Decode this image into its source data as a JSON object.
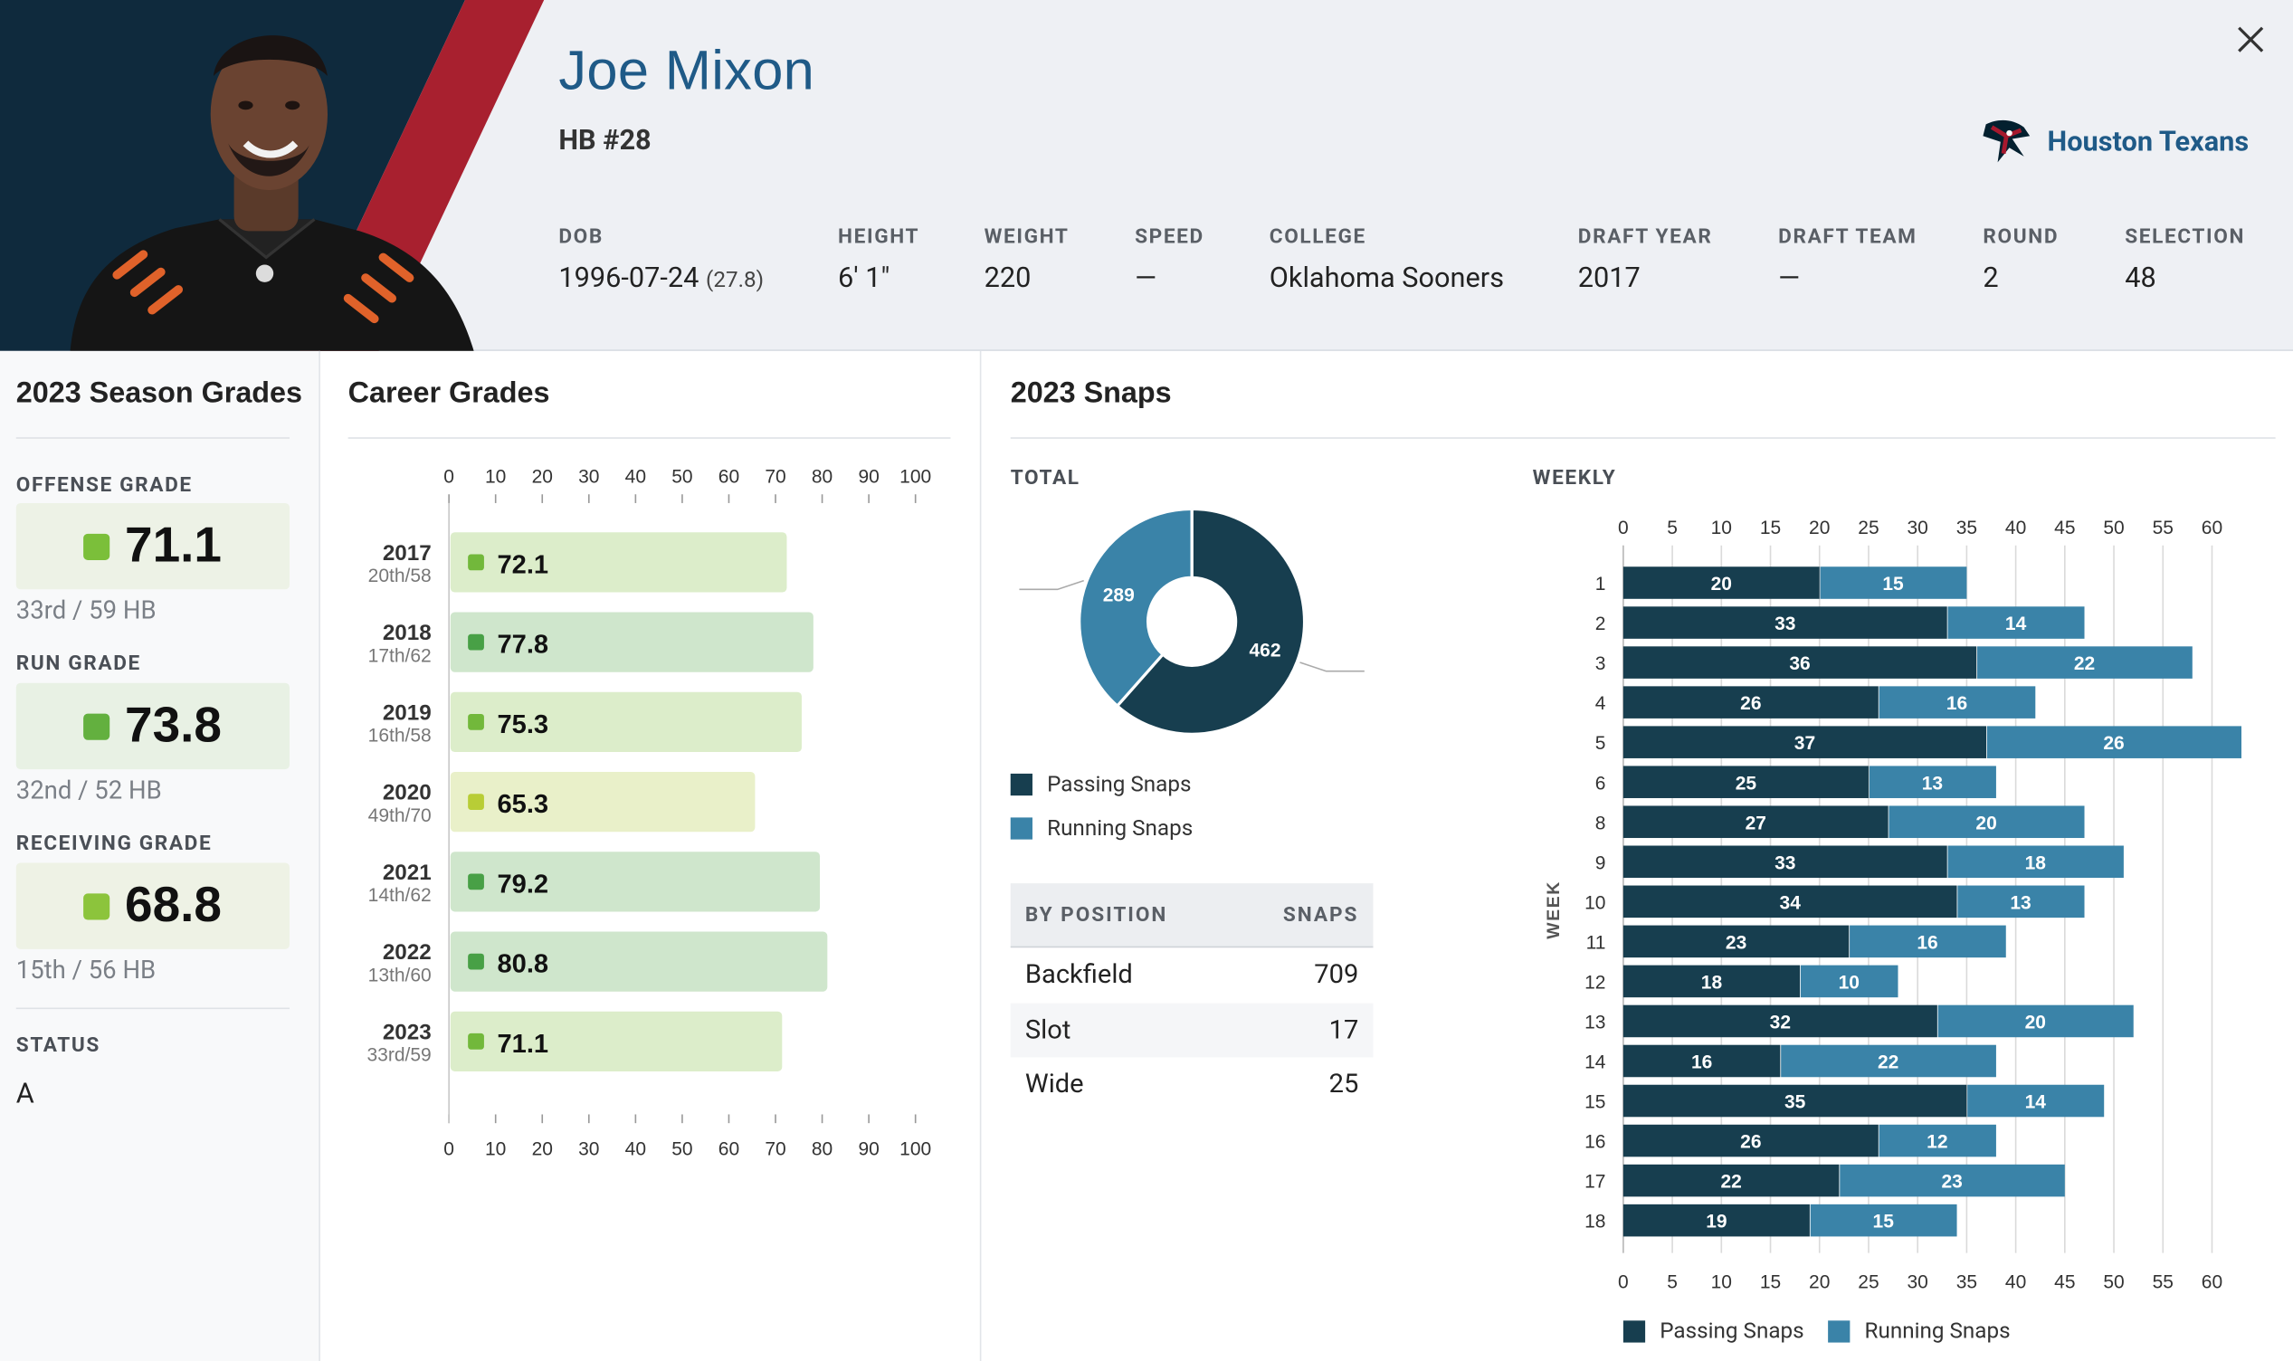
{
  "player": {
    "name": "Joe Mixon",
    "position_number": "HB #28",
    "team": "Houston Texans",
    "attributes": [
      {
        "label": "DOB",
        "value": "1996-07-24",
        "extra": "(27.8)"
      },
      {
        "label": "HEIGHT",
        "value": "6' 1\""
      },
      {
        "label": "WEIGHT",
        "value": "220"
      },
      {
        "label": "SPEED",
        "value": "—"
      },
      {
        "label": "COLLEGE",
        "value": "Oklahoma Sooners"
      },
      {
        "label": "DRAFT YEAR",
        "value": "2017"
      },
      {
        "label": "DRAFT TEAM",
        "value": "—"
      },
      {
        "label": "ROUND",
        "value": "2"
      },
      {
        "label": "SELECTION",
        "value": "48"
      }
    ]
  },
  "season_grades": {
    "title": "2023 Season Grades",
    "offense": {
      "label": "OFFENSE GRADE",
      "value": "71.1",
      "rank": "33rd / 59 HB"
    },
    "run": {
      "label": "RUN GRADE",
      "value": "73.8",
      "rank": "32nd / 52 HB"
    },
    "receiving": {
      "label": "RECEIVING GRADE",
      "value": "68.8",
      "rank": "15th / 56 HB"
    },
    "status_label": "STATUS",
    "status_value": "A"
  },
  "career": {
    "title": "Career Grades"
  },
  "snaps": {
    "title": "2023 Snaps",
    "total_label": "TOTAL",
    "weekly_label": "WEEKLY",
    "week_axis_label": "WEEK",
    "legend_passing": "Passing Snaps",
    "legend_running": "Running Snaps",
    "table": {
      "col1": "BY POSITION",
      "col2": "SNAPS",
      "rows": [
        {
          "position": "Backfield",
          "snaps": "709"
        },
        {
          "position": "Slot",
          "snaps": "17"
        },
        {
          "position": "Wide",
          "snaps": "25"
        }
      ]
    }
  },
  "colors": {
    "passing": "#173e4f",
    "running": "#3a83a8",
    "accent_blue": "#1f5a87"
  },
  "chart_data": [
    {
      "type": "bar",
      "orientation": "horizontal",
      "title": "Career Grades",
      "categories": [
        "2017",
        "2018",
        "2019",
        "2020",
        "2021",
        "2022",
        "2023"
      ],
      "subtitles": [
        "20th/58",
        "17th/62",
        "16th/58",
        "49th/70",
        "14th/62",
        "13th/60",
        "33rd/59"
      ],
      "values": [
        72.1,
        77.8,
        75.3,
        65.3,
        79.2,
        80.8,
        71.1
      ],
      "xlim": [
        0,
        100
      ],
      "xticks": [
        0,
        10,
        20,
        30,
        40,
        50,
        60,
        70,
        80,
        90,
        100
      ]
    },
    {
      "type": "pie",
      "title": "TOTAL",
      "labels": [
        "Passing Snaps",
        "Running Snaps"
      ],
      "values": [
        462,
        289
      ]
    },
    {
      "type": "bar",
      "orientation": "horizontal",
      "stacked": true,
      "title": "WEEKLY",
      "ylabel": "WEEK",
      "categories": [
        "1",
        "2",
        "3",
        "4",
        "5",
        "6",
        "8",
        "9",
        "10",
        "11",
        "12",
        "13",
        "14",
        "15",
        "16",
        "17",
        "18"
      ],
      "series": [
        {
          "name": "Passing Snaps",
          "values": [
            20,
            33,
            36,
            26,
            37,
            25,
            27,
            33,
            34,
            23,
            18,
            32,
            16,
            35,
            26,
            22,
            19
          ]
        },
        {
          "name": "Running Snaps",
          "values": [
            15,
            14,
            22,
            16,
            26,
            13,
            20,
            18,
            13,
            16,
            10,
            20,
            22,
            14,
            12,
            23,
            15
          ]
        }
      ],
      "xlim": [
        0,
        62
      ],
      "xticks": [
        0,
        5,
        10,
        15,
        20,
        25,
        30,
        35,
        40,
        45,
        50,
        55,
        60
      ]
    }
  ]
}
